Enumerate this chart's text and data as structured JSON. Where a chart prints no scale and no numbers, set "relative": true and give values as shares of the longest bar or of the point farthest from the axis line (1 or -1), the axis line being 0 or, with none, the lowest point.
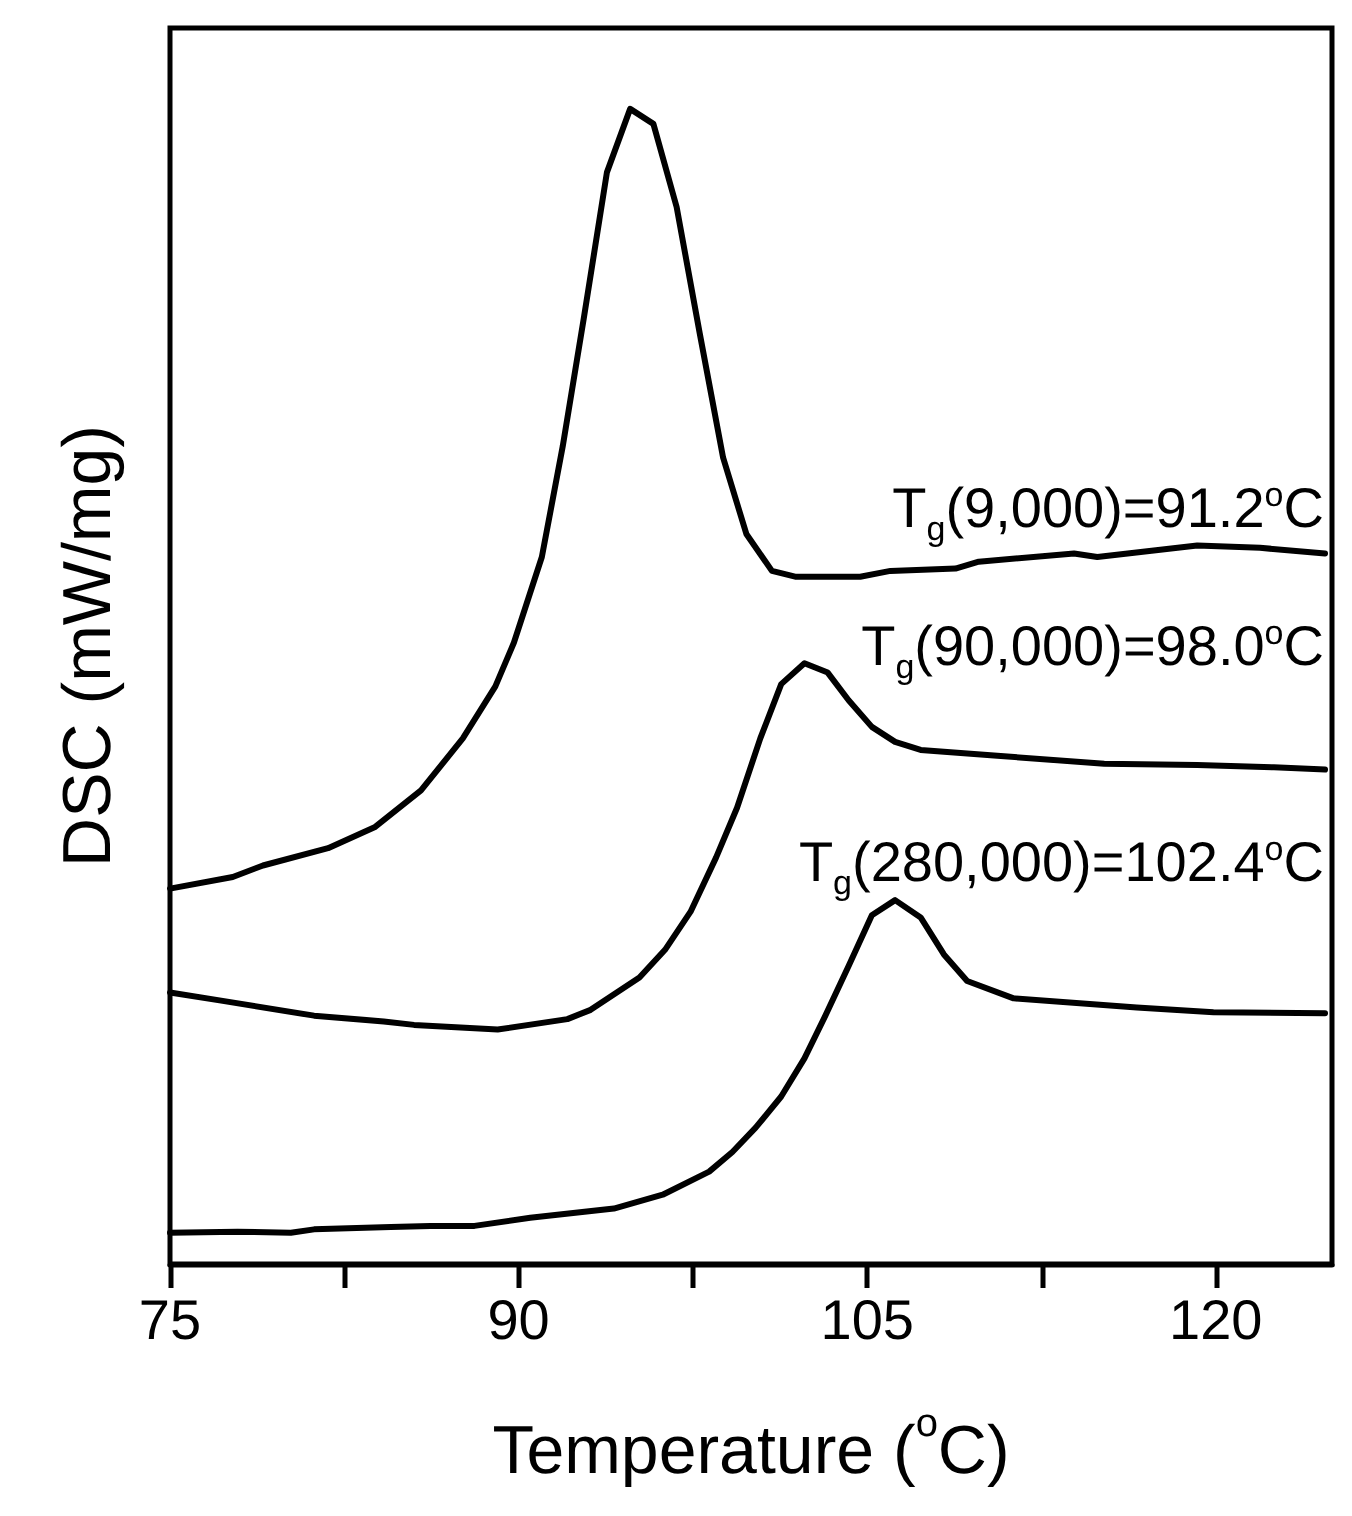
{
  "chart_data": {
    "type": "line",
    "xlabel": "Temperature ($^{o}$C)",
    "ylabel": "DSC (mW/mg)",
    "relative": true,
    "xlim": [
      75,
      125
    ],
    "xticks": [
      75,
      90,
      105,
      120
    ],
    "tick_labels": "x",
    "marker": "none",
    "line_style": "solid",
    "grid": false,
    "series": [
      {
        "color": "#000000",
        "x": [
          75,
          77.7,
          79,
          81.8,
          83.8,
          85.8,
          87.6,
          89,
          89.8,
          91,
          91.9,
          92.8,
          93.8,
          94.8,
          95.8,
          96.8,
          97.8,
          98.8,
          99.8,
          100.9,
          101.9,
          102.9,
          104.7,
          106,
          108.8,
          109.8,
          113.9,
          114.9,
          119.2,
          121.9,
          124.7
        ],
        "values": [
          0.325,
          0.335,
          0.345,
          0.36,
          0.378,
          0.41,
          0.455,
          0.5,
          0.538,
          0.612,
          0.708,
          0.818,
          0.945,
          1,
          0.987,
          0.915,
          0.805,
          0.698,
          0.632,
          0.6,
          0.595,
          0.595,
          0.595,
          0.6,
          0.602,
          0.608,
          0.615,
          0.612,
          0.622,
          0.62,
          0.615
        ]
      },
      {
        "color": "#000000",
        "x": [
          75,
          77.2,
          81.2,
          84.2,
          85.5,
          89.1,
          92.1,
          93.1,
          95.2,
          96.3,
          97.4,
          98.5,
          99.4,
          100.4,
          101.3,
          102.3,
          103.3,
          104.2,
          105.2,
          106.2,
          107.3,
          110.6,
          115.2,
          119.2,
          122.5,
          124.7
        ],
        "values": [
          0.235,
          0.228,
          0.215,
          0.21,
          0.207,
          0.203,
          0.212,
          0.22,
          0.248,
          0.272,
          0.305,
          0.352,
          0.395,
          0.455,
          0.502,
          0.52,
          0.512,
          0.488,
          0.465,
          0.452,
          0.445,
          0.44,
          0.433,
          0.432,
          0.43,
          0.428
        ]
      },
      {
        "color": "#000000",
        "x": [
          75,
          77.9,
          80.2,
          81.2,
          84.5,
          86.2,
          88.1,
          90.5,
          94.1,
          96.2,
          98.2,
          99.2,
          100.2,
          101.3,
          102.3,
          103.2,
          104.2,
          105.2,
          106.2,
          107.3,
          108.3,
          109.3,
          111.3,
          116.6,
          119.9,
          124.7
        ],
        "values": [
          0.027,
          0.028,
          0.027,
          0.03,
          0.032,
          0.033,
          0.033,
          0.04,
          0.048,
          0.06,
          0.08,
          0.097,
          0.118,
          0.145,
          0.178,
          0.215,
          0.258,
          0.302,
          0.315,
          0.3,
          0.268,
          0.245,
          0.23,
          0.222,
          0.218,
          0.217
        ]
      }
    ],
    "annotations": [
      "T$_{g}$(9,000)=91.2$^{o}$C",
      "T$_{g}$(90,000)=98.0$^{o}$C",
      "T$_{g}$(280,000)=102.4$^{o}$C"
    ]
  }
}
